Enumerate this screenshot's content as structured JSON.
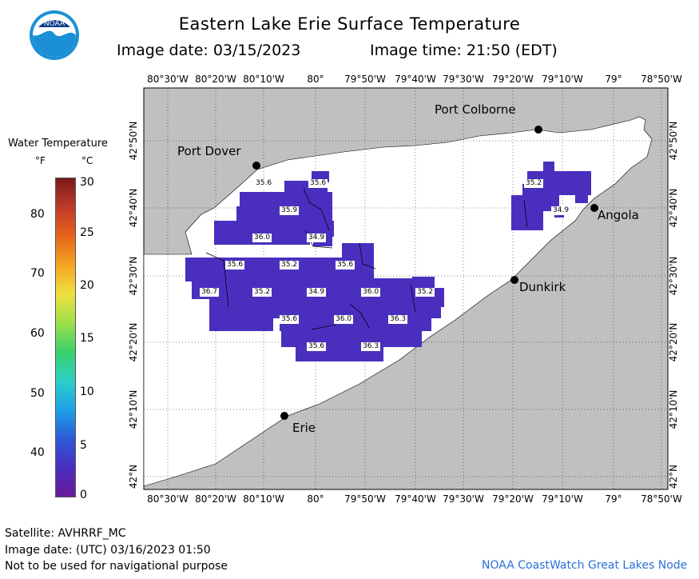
{
  "title": "Eastern Lake Erie Surface Temperature",
  "subtitle_date": "Image date: 03/15/2023",
  "subtitle_time": "Image time: 21:50 (EDT)",
  "logo_text": "NOAA",
  "legend": {
    "title": "Water Temperature",
    "unit_f": "°F",
    "unit_c": "°C",
    "f_ticks": [
      "80",
      "70",
      "60",
      "50",
      "40"
    ],
    "c_ticks": [
      "30",
      "25",
      "20",
      "15",
      "10",
      "5",
      "0"
    ],
    "colors": [
      "#7a1a1a",
      "#c0392b",
      "#e8641a",
      "#f5a623",
      "#f0e040",
      "#9de04a",
      "#3ad16a",
      "#2bd0c8",
      "#1fa0e8",
      "#2c5bd6",
      "#4a2fbf",
      "#6a1a9a"
    ]
  },
  "axes": {
    "longitudes": [
      "80°30'W",
      "80°20'W",
      "80°10'W",
      "80°",
      "79°50'W",
      "79°40'W",
      "79°30'W",
      "79°20'W",
      "79°10'W",
      "79°",
      "78°50'W"
    ],
    "latitudes": [
      "42°50'N",
      "42°40'N",
      "42°30'N",
      "42°20'N",
      "42°10'N",
      "42°N"
    ]
  },
  "cities": [
    {
      "name": "Port Colborne"
    },
    {
      "name": "Port Dover"
    },
    {
      "name": "Angola"
    },
    {
      "name": "Dunkirk"
    },
    {
      "name": "Erie"
    }
  ],
  "temperatures": [
    {
      "value": "35.6"
    },
    {
      "value": "35.6"
    },
    {
      "value": "35.9"
    },
    {
      "value": "36.0"
    },
    {
      "value": "34.9"
    },
    {
      "value": "35.6"
    },
    {
      "value": "35.2"
    },
    {
      "value": "35.6"
    },
    {
      "value": "36.7"
    },
    {
      "value": "35.2"
    },
    {
      "value": "34.9"
    },
    {
      "value": "36.0"
    },
    {
      "value": "35.2"
    },
    {
      "value": "35.6"
    },
    {
      "value": "36.0"
    },
    {
      "value": "36.3"
    },
    {
      "value": "35.6"
    },
    {
      "value": "36.3"
    },
    {
      "value": "35.2"
    },
    {
      "value": "34.9"
    }
  ],
  "footer": {
    "satellite": "Satellite: AVHRRF_MC",
    "utc_date": "Image date: (UTC) 03/16/2023  01:50",
    "disclaimer": "Not to be used for navigational purpose",
    "credit": "NOAA CoastWatch Great Lakes Node"
  }
}
